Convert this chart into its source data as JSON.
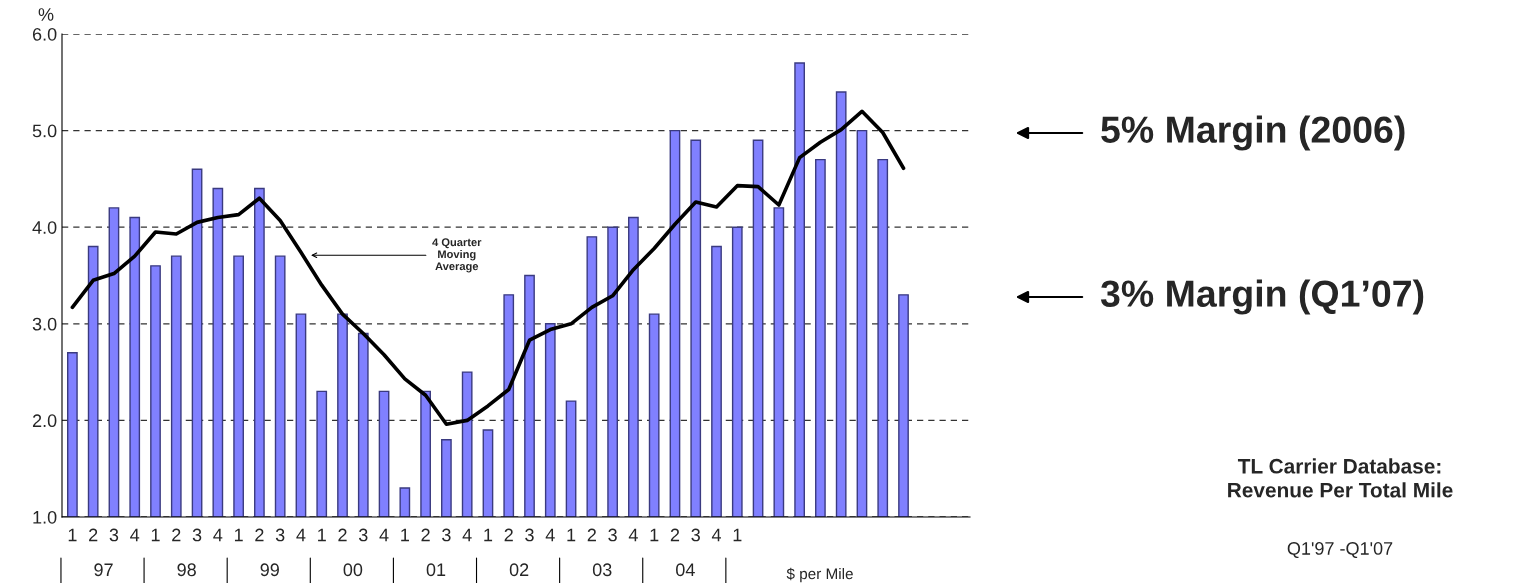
{
  "chart_data": {
    "type": "bar",
    "title": "TL Carrier Database:\nRevenue Per Total Mile",
    "subtitle": "Q1'97 -Q1'07",
    "ylabel": "%",
    "categories": [
      "1",
      "2",
      "3",
      "4",
      "1",
      "2",
      "3",
      "4",
      "1",
      "2",
      "3",
      "4",
      "1",
      "2",
      "3",
      "4",
      "1",
      "2",
      "3",
      "4",
      "1",
      "2",
      "3",
      "4",
      "1",
      "2",
      "3",
      "4",
      "1",
      "2",
      "3",
      "4",
      "1",
      null,
      null,
      null,
      null,
      null,
      null,
      null,
      null
    ],
    "series": [
      {
        "color": "#8080ff",
        "values": [
          2.7,
          3.8,
          4.2,
          4.1,
          3.6,
          3.7,
          4.6,
          4.4,
          3.7,
          4.4,
          3.7,
          3.1,
          2.3,
          3.1,
          2.9,
          2.3,
          1.3,
          2.3,
          1.8,
          2.5,
          1.9,
          3.3,
          3.5,
          3.0,
          2.2,
          3.9,
          4.0,
          4.1,
          3.1,
          5.0,
          4.9,
          3.8,
          4.0,
          4.9,
          4.2,
          5.7,
          4.7,
          5.4,
          5.0,
          4.7,
          3.3
        ]
      },
      {
        "type": "line",
        "name": "4 Quarter Moving Average",
        "color": "#000000",
        "values": [
          3.17,
          3.45,
          3.52,
          3.7,
          3.95,
          3.93,
          4.05,
          4.1,
          4.13,
          4.3,
          4.07,
          3.74,
          3.4,
          3.1,
          2.9,
          2.68,
          2.43,
          2.26,
          1.96,
          2.0,
          2.15,
          2.32,
          2.83,
          2.94,
          3.0,
          3.17,
          3.29,
          3.56,
          3.78,
          4.03,
          4.26,
          4.21,
          4.43,
          4.42,
          4.23,
          4.72,
          4.88,
          5.01,
          5.2,
          4.98,
          4.61
        ]
      }
    ],
    "ylim": [
      1,
      6
    ],
    "yticks": [
      {
        "value": 1,
        "label": "1.0"
      },
      {
        "value": 2,
        "label": "2.0"
      },
      {
        "value": 3,
        "label": "3.0"
      },
      {
        "value": 4,
        "label": "4.0"
      },
      {
        "value": 5,
        "label": "5.0"
      },
      {
        "value": 6,
        "label": "6.0"
      }
    ],
    "grid": "y",
    "legend": false,
    "line_style": "solid",
    "marker": "none",
    "annotations": [
      "97",
      "98",
      "99",
      "00",
      "01",
      "02",
      "03",
      "04",
      "$ per Mile",
      "5% Margin (2006)",
      "3% Margin (Q1’07)"
    ]
  }
}
